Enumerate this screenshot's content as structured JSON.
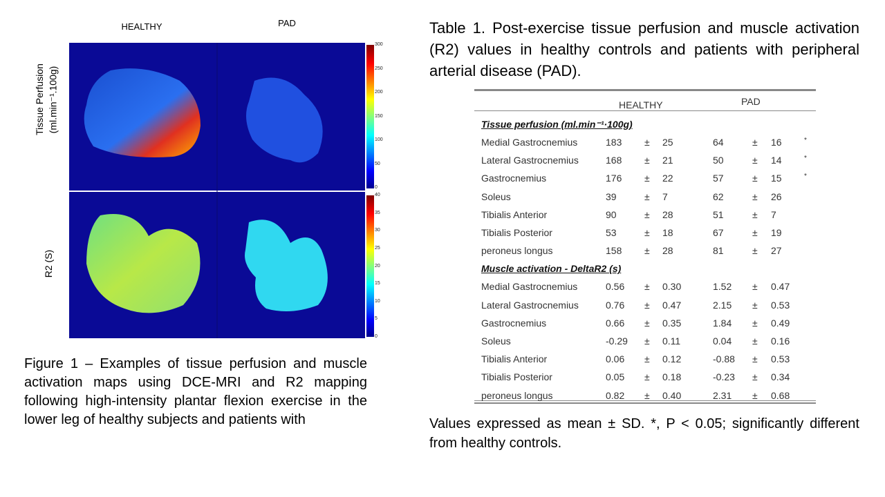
{
  "figure": {
    "column_labels": [
      "HEALTHY",
      "PAD"
    ],
    "row_labels": [
      [
        "Tissue Perfusion",
        "(ml.min⁻¹.100g)"
      ],
      [
        "R2 (S)"
      ]
    ],
    "colorbars": [
      [
        300,
        250,
        200,
        150,
        100,
        50,
        0
      ],
      [
        40,
        35,
        30,
        25,
        20,
        15,
        10,
        5,
        0
      ]
    ]
  },
  "caption": "Figure 1 – Examples of tissue perfusion and muscle activation maps using DCE-MRI and R2 mapping following high-intensity plantar flexion exercise in the lower leg of healthy subjects and patients with",
  "table": {
    "title": "Table 1. Post-exercise tissue perfusion and muscle activation (R2) values in healthy controls and patients with peripheral arterial disease (PAD).",
    "columns": [
      "HEALTHY",
      "PAD"
    ],
    "pm": "±",
    "sections": [
      {
        "heading": "Tissue perfusion (ml.min⁻¹·100g)",
        "rows": [
          {
            "name": "Medial Gastrocnemius",
            "healthy": [
              "183",
              "25"
            ],
            "pad": [
              "64",
              "16"
            ],
            "sig": "*"
          },
          {
            "name": "Lateral Gastrocnemius",
            "healthy": [
              "168",
              "21"
            ],
            "pad": [
              "50",
              "14"
            ],
            "sig": "*"
          },
          {
            "name": "Gastrocnemius",
            "healthy": [
              "176",
              "22"
            ],
            "pad": [
              "57",
              "15"
            ],
            "sig": "*"
          },
          {
            "name": "Soleus",
            "healthy": [
              "39",
              "7"
            ],
            "pad": [
              "62",
              "26"
            ]
          },
          {
            "name": "Tibialis Anterior",
            "healthy": [
              "90",
              "28"
            ],
            "pad": [
              "51",
              "7"
            ]
          },
          {
            "name": "Tibialis Posterior",
            "healthy": [
              "53",
              "18"
            ],
            "pad": [
              "67",
              "19"
            ]
          },
          {
            "name": "peroneus longus",
            "healthy": [
              "158",
              "28"
            ],
            "pad": [
              "81",
              "27"
            ]
          }
        ]
      },
      {
        "heading": "Muscle activation - DeltaR2 (s)",
        "rows": [
          {
            "name": "Medial Gastrocnemius",
            "healthy": [
              "0.56",
              "0.30"
            ],
            "pad": [
              "1.52",
              "0.47"
            ]
          },
          {
            "name": "Lateral Gastrocnemius",
            "healthy": [
              "0.76",
              "0.47"
            ],
            "pad": [
              "2.15",
              "0.53"
            ]
          },
          {
            "name": "Gastrocnemius",
            "healthy": [
              "0.66",
              "0.35"
            ],
            "pad": [
              "1.84",
              "0.49"
            ]
          },
          {
            "name": "Soleus",
            "healthy": [
              "-0.29",
              "0.11"
            ],
            "pad": [
              "0.04",
              "0.16"
            ]
          },
          {
            "name": "Tibialis Anterior",
            "healthy": [
              "0.06",
              "0.12"
            ],
            "pad": [
              "-0.88",
              "0.53"
            ]
          },
          {
            "name": "Tibialis Posterior",
            "healthy": [
              "0.05",
              "0.18"
            ],
            "pad": [
              "-0.23",
              "0.34"
            ]
          },
          {
            "name": "peroneus longus",
            "healthy": [
              "0.82",
              "0.40"
            ],
            "pad": [
              "2.31",
              "0.68"
            ]
          }
        ]
      }
    ]
  },
  "footnote": "Values expressed as mean ± SD. *, P < 0.05; significantly different from healthy controls."
}
